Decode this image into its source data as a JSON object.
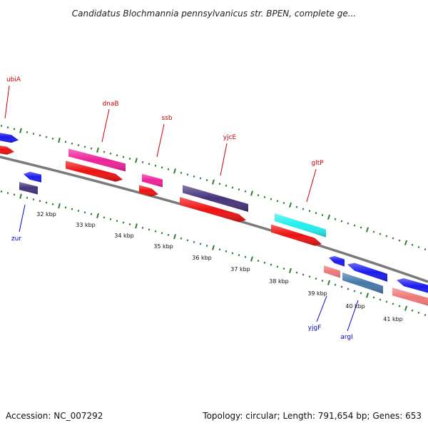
{
  "title": "Candidatus Blochmannia pennsylvanicus str. BPEN, complete ge...",
  "footer": {
    "accession": "Accession: NC_007292",
    "stats": "Topology: circular; Length: 791,654 bp; Genes: 653"
  },
  "colors": {
    "backbone": "#7a7a7a",
    "tick_green": "#2e7d2e",
    "forward_label": "#cc0000",
    "reverse_label": "#0000cc"
  },
  "tick_labels": [
    "32 kbp",
    "33 kbp",
    "34 kbp",
    "35 kbp",
    "36 kbp",
    "37 kbp",
    "38 kbp",
    "39 kbp",
    "40 kbp",
    "41 kbp"
  ],
  "forward_labels": [
    {
      "id": "ubiA",
      "text": "ubiA"
    },
    {
      "id": "dnaB",
      "text": "dnaB"
    },
    {
      "id": "ssb",
      "text": "ssb"
    },
    {
      "id": "yjcE",
      "text": "yjcE"
    },
    {
      "id": "gltP",
      "text": "gltP"
    }
  ],
  "reverse_labels": [
    {
      "id": "zur",
      "text": "zur"
    },
    {
      "id": "yjgF",
      "text": "yjgF"
    },
    {
      "id": "argI",
      "text": "argI"
    }
  ],
  "feature_colors": {
    "red": "#ee1111",
    "magenta": "#ee2299",
    "navy": "#44337a",
    "cyan": "#22eeee",
    "blue": "#1a1aee",
    "pink": "#ee7777",
    "steel": "#4477aa"
  }
}
